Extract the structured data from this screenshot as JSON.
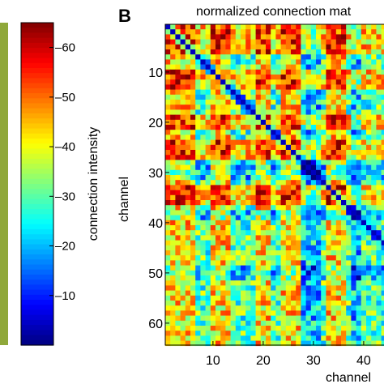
{
  "chart_data": [
    {
      "type": "heatmap",
      "panel": "",
      "title": "",
      "colorbar": {
        "label": "connection intensity",
        "ticks": [
          60,
          50,
          40,
          30,
          20,
          10
        ],
        "tick_labels": [
          "60",
          "50",
          "40",
          "30",
          "20",
          "10"
        ],
        "range": [
          0,
          65
        ],
        "colormap": "jet"
      }
    },
    {
      "type": "heatmap",
      "panel": "B",
      "title": "normalized connection mat",
      "xlabel": "channel",
      "ylabel": "channel",
      "x_ticks": [
        10,
        20,
        30,
        40
      ],
      "x_tick_labels": [
        "10",
        "20",
        "30",
        "40"
      ],
      "y_ticks": [
        10,
        20,
        30,
        40,
        50,
        60
      ],
      "y_tick_labels": [
        "10",
        "20",
        "30",
        "40",
        "50",
        "60"
      ],
      "n_channels": 64,
      "diagonal": "low",
      "blocks": [
        {
          "channels": [
            1,
            6
          ],
          "level": "high"
        },
        {
          "channels": [
            10,
            13
          ],
          "level": "high"
        },
        {
          "channels": [
            19,
            21
          ],
          "level": "high"
        },
        {
          "channels": [
            24,
            27
          ],
          "level": "high"
        },
        {
          "channels": [
            33,
            36
          ],
          "level": "high"
        },
        {
          "channels": [
            28,
            31
          ],
          "level": "low"
        },
        {
          "channels": [
            38,
            39
          ],
          "level": "low"
        },
        {
          "channels": [
            49,
            51
          ],
          "level": "low"
        }
      ]
    }
  ],
  "colors": {
    "jet_low": "#00008f",
    "jet_mid": "#7fff7f",
    "jet_high": "#800000"
  }
}
